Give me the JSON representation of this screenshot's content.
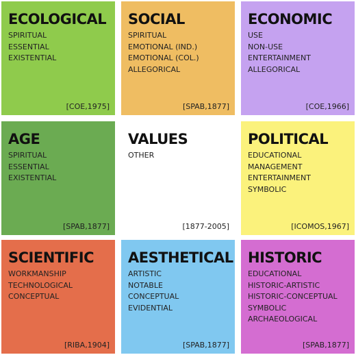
{
  "tiles": [
    {
      "title": "ECOLOGICAL",
      "color": "#8fcb4c",
      "items": [
        "SPIRITUAL",
        "ESSENTIAL",
        "EXISTENTIAL"
      ],
      "ref": "[COE,1975]"
    },
    {
      "title": "SOCIAL",
      "color": "#efbd62",
      "items": [
        "SPIRITUAL",
        "EMOTIONAL (IND.)",
        "EMOTIONAL (COL.)",
        "ALLEGORICAL"
      ],
      "ref": "[SPAB,1877]"
    },
    {
      "title": "ECONOMIC",
      "color": "#c5a2f0",
      "items": [
        "USE",
        "NON-USE",
        "ENTERTAINMENT",
        "ALLEGORICAL"
      ],
      "ref": "[COE,1966]"
    },
    {
      "title": "AGE",
      "color": "#6bab52",
      "items": [
        "SPIRITUAL",
        "ESSENTIAL",
        "EXISTENTIAL"
      ],
      "ref": "[SPAB,1877]"
    },
    {
      "title": "VALUES",
      "color": "#ffffff",
      "items": [
        "OTHER"
      ],
      "ref": "[1877-2005]"
    },
    {
      "title": "POLITICAL",
      "color": "#fbf27c",
      "items": [
        "EDUCATIONAL",
        "MANAGEMENT",
        "ENTERTAINMENT",
        "SYMBOLIC"
      ],
      "ref": "[ICOMOS,1967]"
    },
    {
      "title": "SCIENTIFIC",
      "color": "#e46e4b",
      "items": [
        "WORKMANSHIP",
        "TECHNOLOGICAL",
        "CONCEPTUAL"
      ],
      "ref": "[RIBA,1904]"
    },
    {
      "title": "AESTHETICAL",
      "color": "#80c8f0",
      "items": [
        "ARTISTIC",
        "NOTABLE",
        "CONCEPTUAL",
        "EVIDENTIAL"
      ],
      "ref": "[SPAB,1877]"
    },
    {
      "title": "HISTORIC",
      "color": "#d46dd1",
      "items": [
        "EDUCATIONAL",
        "HISTORIC-ARTISTIC",
        "HISTORIC-CONCEPTUAL",
        "SYMBOLIC",
        "ARCHAEOLOGICAL"
      ],
      "ref": "[SPAB,1877]"
    }
  ]
}
